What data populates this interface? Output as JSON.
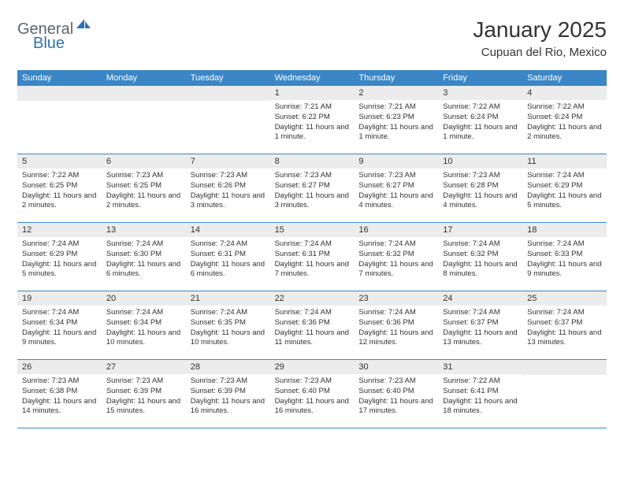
{
  "brand": {
    "part1": "General",
    "part2": "Blue"
  },
  "title": "January 2025",
  "location": "Cupuan del Rio, Mexico",
  "colors": {
    "header_bg": "#3b86c6",
    "daynum_bg": "#ececec",
    "row_border": "#3b86c6",
    "text": "#333333",
    "logo_gray": "#5b6570",
    "logo_blue": "#2d73b8"
  },
  "days_of_week": [
    "Sunday",
    "Monday",
    "Tuesday",
    "Wednesday",
    "Thursday",
    "Friday",
    "Saturday"
  ],
  "weeks": [
    [
      {
        "n": "",
        "sr": "",
        "ss": "",
        "dl": ""
      },
      {
        "n": "",
        "sr": "",
        "ss": "",
        "dl": ""
      },
      {
        "n": "",
        "sr": "",
        "ss": "",
        "dl": ""
      },
      {
        "n": "1",
        "sr": "Sunrise: 7:21 AM",
        "ss": "Sunset: 6:22 PM",
        "dl": "Daylight: 11 hours and 1 minute."
      },
      {
        "n": "2",
        "sr": "Sunrise: 7:21 AM",
        "ss": "Sunset: 6:23 PM",
        "dl": "Daylight: 11 hours and 1 minute."
      },
      {
        "n": "3",
        "sr": "Sunrise: 7:22 AM",
        "ss": "Sunset: 6:24 PM",
        "dl": "Daylight: 11 hours and 1 minute."
      },
      {
        "n": "4",
        "sr": "Sunrise: 7:22 AM",
        "ss": "Sunset: 6:24 PM",
        "dl": "Daylight: 11 hours and 2 minutes."
      }
    ],
    [
      {
        "n": "5",
        "sr": "Sunrise: 7:22 AM",
        "ss": "Sunset: 6:25 PM",
        "dl": "Daylight: 11 hours and 2 minutes."
      },
      {
        "n": "6",
        "sr": "Sunrise: 7:23 AM",
        "ss": "Sunset: 6:25 PM",
        "dl": "Daylight: 11 hours and 2 minutes."
      },
      {
        "n": "7",
        "sr": "Sunrise: 7:23 AM",
        "ss": "Sunset: 6:26 PM",
        "dl": "Daylight: 11 hours and 3 minutes."
      },
      {
        "n": "8",
        "sr": "Sunrise: 7:23 AM",
        "ss": "Sunset: 6:27 PM",
        "dl": "Daylight: 11 hours and 3 minutes."
      },
      {
        "n": "9",
        "sr": "Sunrise: 7:23 AM",
        "ss": "Sunset: 6:27 PM",
        "dl": "Daylight: 11 hours and 4 minutes."
      },
      {
        "n": "10",
        "sr": "Sunrise: 7:23 AM",
        "ss": "Sunset: 6:28 PM",
        "dl": "Daylight: 11 hours and 4 minutes."
      },
      {
        "n": "11",
        "sr": "Sunrise: 7:24 AM",
        "ss": "Sunset: 6:29 PM",
        "dl": "Daylight: 11 hours and 5 minutes."
      }
    ],
    [
      {
        "n": "12",
        "sr": "Sunrise: 7:24 AM",
        "ss": "Sunset: 6:29 PM",
        "dl": "Daylight: 11 hours and 5 minutes."
      },
      {
        "n": "13",
        "sr": "Sunrise: 7:24 AM",
        "ss": "Sunset: 6:30 PM",
        "dl": "Daylight: 11 hours and 6 minutes."
      },
      {
        "n": "14",
        "sr": "Sunrise: 7:24 AM",
        "ss": "Sunset: 6:31 PM",
        "dl": "Daylight: 11 hours and 6 minutes."
      },
      {
        "n": "15",
        "sr": "Sunrise: 7:24 AM",
        "ss": "Sunset: 6:31 PM",
        "dl": "Daylight: 11 hours and 7 minutes."
      },
      {
        "n": "16",
        "sr": "Sunrise: 7:24 AM",
        "ss": "Sunset: 6:32 PM",
        "dl": "Daylight: 11 hours and 7 minutes."
      },
      {
        "n": "17",
        "sr": "Sunrise: 7:24 AM",
        "ss": "Sunset: 6:32 PM",
        "dl": "Daylight: 11 hours and 8 minutes."
      },
      {
        "n": "18",
        "sr": "Sunrise: 7:24 AM",
        "ss": "Sunset: 6:33 PM",
        "dl": "Daylight: 11 hours and 9 minutes."
      }
    ],
    [
      {
        "n": "19",
        "sr": "Sunrise: 7:24 AM",
        "ss": "Sunset: 6:34 PM",
        "dl": "Daylight: 11 hours and 9 minutes."
      },
      {
        "n": "20",
        "sr": "Sunrise: 7:24 AM",
        "ss": "Sunset: 6:34 PM",
        "dl": "Daylight: 11 hours and 10 minutes."
      },
      {
        "n": "21",
        "sr": "Sunrise: 7:24 AM",
        "ss": "Sunset: 6:35 PM",
        "dl": "Daylight: 11 hours and 10 minutes."
      },
      {
        "n": "22",
        "sr": "Sunrise: 7:24 AM",
        "ss": "Sunset: 6:36 PM",
        "dl": "Daylight: 11 hours and 11 minutes."
      },
      {
        "n": "23",
        "sr": "Sunrise: 7:24 AM",
        "ss": "Sunset: 6:36 PM",
        "dl": "Daylight: 11 hours and 12 minutes."
      },
      {
        "n": "24",
        "sr": "Sunrise: 7:24 AM",
        "ss": "Sunset: 6:37 PM",
        "dl": "Daylight: 11 hours and 13 minutes."
      },
      {
        "n": "25",
        "sr": "Sunrise: 7:24 AM",
        "ss": "Sunset: 6:37 PM",
        "dl": "Daylight: 11 hours and 13 minutes."
      }
    ],
    [
      {
        "n": "26",
        "sr": "Sunrise: 7:23 AM",
        "ss": "Sunset: 6:38 PM",
        "dl": "Daylight: 11 hours and 14 minutes."
      },
      {
        "n": "27",
        "sr": "Sunrise: 7:23 AM",
        "ss": "Sunset: 6:39 PM",
        "dl": "Daylight: 11 hours and 15 minutes."
      },
      {
        "n": "28",
        "sr": "Sunrise: 7:23 AM",
        "ss": "Sunset: 6:39 PM",
        "dl": "Daylight: 11 hours and 16 minutes."
      },
      {
        "n": "29",
        "sr": "Sunrise: 7:23 AM",
        "ss": "Sunset: 6:40 PM",
        "dl": "Daylight: 11 hours and 16 minutes."
      },
      {
        "n": "30",
        "sr": "Sunrise: 7:23 AM",
        "ss": "Sunset: 6:40 PM",
        "dl": "Daylight: 11 hours and 17 minutes."
      },
      {
        "n": "31",
        "sr": "Sunrise: 7:22 AM",
        "ss": "Sunset: 6:41 PM",
        "dl": "Daylight: 11 hours and 18 minutes."
      },
      {
        "n": "",
        "sr": "",
        "ss": "",
        "dl": ""
      }
    ]
  ]
}
